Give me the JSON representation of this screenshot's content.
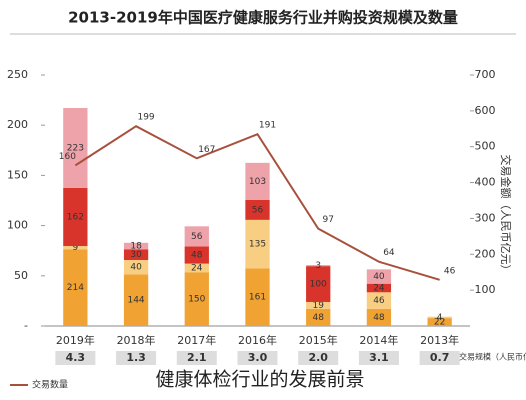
{
  "chart_data": {
    "type": "bar",
    "title": "2013-2019年中国医疗健康服务行业并购投资规模及数量",
    "y2_label": "交易金额（人民币亿元）",
    "categories": [
      "2019年",
      "2018年",
      "2017年",
      "2016年",
      "2015年",
      "2014年",
      "2013年"
    ],
    "series": [
      {
        "color": "#f0a232",
        "axis": "y2",
        "values": [
          214,
          144,
          150,
          161,
          48,
          48,
          22
        ]
      },
      {
        "color": "#f8cf82",
        "axis": "y2",
        "values": [
          9,
          40,
          24,
          135,
          19,
          46,
          4
        ]
      },
      {
        "color": "#d9342c",
        "axis": "y2",
        "values": [
          162,
          30,
          48,
          56,
          100,
          24,
          null
        ]
      },
      {
        "color": "#eea3ab",
        "axis": "y2",
        "values": [
          223,
          18,
          56,
          103,
          3,
          40,
          null
        ]
      },
      {
        "name": "交易数量",
        "type": "line",
        "color": "#a8503c",
        "values": [
          160,
          199,
          167,
          191,
          97,
          64,
          46
        ]
      }
    ],
    "avg_size": {
      "label": "平均交易规模（人民币亿元）",
      "values": [
        4.3,
        1.3,
        2.1,
        3.0,
        2.0,
        3.1,
        0.7
      ],
      "value_labels": [
        "4.3",
        "1.3",
        "2.1",
        "3.0",
        "2.0",
        "3.1",
        "0.7"
      ]
    },
    "ylim": [
      0,
      250
    ],
    "yticks": [
      {
        "value": 0,
        "label": "-"
      },
      50,
      100,
      150,
      200,
      250
    ],
    "y2lim": [
      0,
      700
    ],
    "y2ticks": [
      100,
      200,
      300,
      400,
      500,
      600,
      700
    ],
    "caption": "健康体检行业的发展前景"
  }
}
